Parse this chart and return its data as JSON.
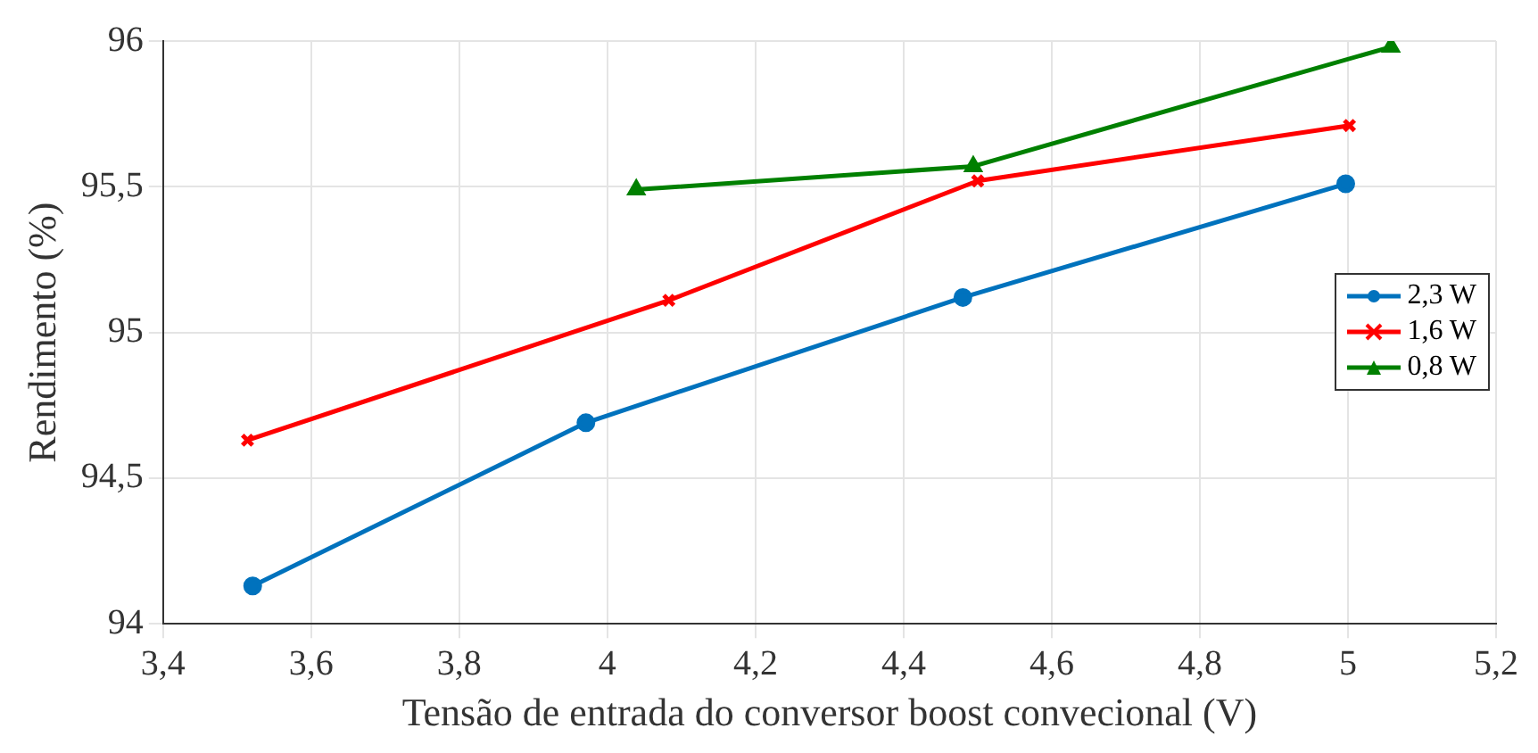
{
  "chart_data": {
    "type": "line",
    "xlabel": "Tensão de entrada do conversor boost convecional (V)",
    "ylabel": "Rendimento (%)",
    "series": [
      {
        "name": "2,3 W",
        "color": "#0072bd",
        "marker": "circle",
        "x": [
          3.521,
          3.971,
          4.48,
          4.997
        ],
        "values": [
          94.13,
          94.69,
          95.12,
          95.51
        ]
      },
      {
        "name": "1,6 W",
        "color": "#ff0000",
        "marker": "cross",
        "x": [
          3.514,
          4.083,
          4.5,
          5.002
        ],
        "values": [
          94.63,
          95.11,
          95.52,
          95.71
        ]
      },
      {
        "name": "0,8 W",
        "color": "#008000",
        "marker": "triangle",
        "x": [
          4.039,
          4.494,
          5.058
        ],
        "values": [
          95.49,
          95.57,
          95.98
        ]
      }
    ],
    "xlim": [
      3.4,
      5.2
    ],
    "xticks": [
      {
        "value": 3.4,
        "label": "3,4"
      },
      {
        "value": 3.6,
        "label": "3,6"
      },
      {
        "value": 3.8,
        "label": "3,8"
      },
      {
        "value": 4,
        "label": "4"
      },
      {
        "value": 4.2,
        "label": "4,2"
      },
      {
        "value": 4.4,
        "label": "4,4"
      },
      {
        "value": 4.6,
        "label": "4,6"
      },
      {
        "value": 4.8,
        "label": "4,8"
      },
      {
        "value": 5,
        "label": "5"
      },
      {
        "value": 5.2,
        "label": "5,2"
      }
    ],
    "ylim": [
      94,
      96
    ],
    "yticks": [
      94,
      {
        "value": 94.5,
        "label": "94,5"
      },
      95,
      {
        "value": 95.5,
        "label": "95,5"
      },
      96
    ],
    "grid": true,
    "legend": "right",
    "line_style": "solid"
  }
}
